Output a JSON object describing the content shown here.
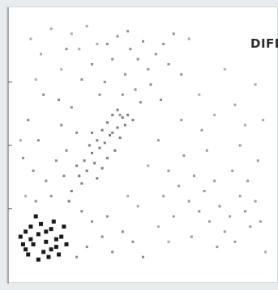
{
  "chart_data": {
    "type": "scatter",
    "title": "DIFF",
    "xlabel": "",
    "ylabel": "",
    "xlim": [
      0,
      100
    ],
    "ylim": [
      0,
      100
    ],
    "grid": false,
    "series": [
      {
        "values": [
          {
            "x": 2,
            "y": 14
          },
          {
            "x": 4,
            "y": 9
          },
          {
            "x": 6,
            "y": 18
          },
          {
            "x": 7,
            "y": 11
          },
          {
            "x": 9,
            "y": 15
          },
          {
            "x": 11,
            "y": 8
          },
          {
            "x": 12,
            "y": 12
          },
          {
            "x": 14,
            "y": 17
          },
          {
            "x": 16,
            "y": 10
          },
          {
            "x": 18,
            "y": 14
          },
          {
            "x": 10,
            "y": 19
          },
          {
            "x": 13,
            "y": 6
          },
          {
            "x": 15,
            "y": 20
          },
          {
            "x": 8,
            "y": 22
          },
          {
            "x": 17,
            "y": 7
          },
          {
            "x": 3,
            "y": 11
          },
          {
            "x": 5,
            "y": 7
          },
          {
            "x": 19,
            "y": 18
          },
          {
            "x": 12,
            "y": 16
          },
          {
            "x": 6,
            "y": 13
          },
          {
            "x": 20,
            "y": 11
          },
          {
            "x": 14,
            "y": 9
          },
          {
            "x": 9,
            "y": 5
          },
          {
            "x": 4,
            "y": 16
          },
          {
            "x": 16,
            "y": 13
          }
        ]
      },
      {
        "values": [
          {
            "x": 22,
            "y": 32
          },
          {
            "x": 25,
            "y": 38
          },
          {
            "x": 27,
            "y": 44
          },
          {
            "x": 30,
            "y": 47
          },
          {
            "x": 32,
            "y": 52
          },
          {
            "x": 34,
            "y": 56
          },
          {
            "x": 36,
            "y": 59
          },
          {
            "x": 38,
            "y": 62
          },
          {
            "x": 40,
            "y": 57
          },
          {
            "x": 42,
            "y": 61
          },
          {
            "x": 28,
            "y": 40
          },
          {
            "x": 31,
            "y": 43
          },
          {
            "x": 33,
            "y": 49
          },
          {
            "x": 35,
            "y": 51
          },
          {
            "x": 37,
            "y": 54
          },
          {
            "x": 39,
            "y": 48
          },
          {
            "x": 41,
            "y": 53
          },
          {
            "x": 43,
            "y": 58
          },
          {
            "x": 26,
            "y": 35
          },
          {
            "x": 29,
            "y": 50
          },
          {
            "x": 24,
            "y": 42
          },
          {
            "x": 36,
            "y": 45
          },
          {
            "x": 44,
            "y": 62
          },
          {
            "x": 32,
            "y": 37
          },
          {
            "x": 38,
            "y": 55
          },
          {
            "x": 30,
            "y": 55
          },
          {
            "x": 34,
            "y": 41
          },
          {
            "x": 40,
            "y": 64
          },
          {
            "x": 21,
            "y": 28
          },
          {
            "x": 46,
            "y": 60
          }
        ]
      },
      {
        "values": [
          {
            "x": 40,
            "y": 93
          },
          {
            "x": 45,
            "y": 88
          },
          {
            "x": 48,
            "y": 84
          },
          {
            "x": 52,
            "y": 80
          },
          {
            "x": 43,
            "y": 78
          },
          {
            "x": 50,
            "y": 91
          },
          {
            "x": 38,
            "y": 84
          },
          {
            "x": 55,
            "y": 86
          },
          {
            "x": 47,
            "y": 72
          },
          {
            "x": 42,
            "y": 70
          },
          {
            "x": 35,
            "y": 75
          },
          {
            "x": 53,
            "y": 74
          },
          {
            "x": 58,
            "y": 90
          },
          {
            "x": 44,
            "y": 95
          },
          {
            "x": 36,
            "y": 90
          },
          {
            "x": 60,
            "y": 82
          },
          {
            "x": 49,
            "y": 67
          },
          {
            "x": 30,
            "y": 82
          },
          {
            "x": 33,
            "y": 70
          },
          {
            "x": 57,
            "y": 68
          },
          {
            "x": 20,
            "y": 88
          },
          {
            "x": 26,
            "y": 76
          },
          {
            "x": 62,
            "y": 94
          },
          {
            "x": 65,
            "y": 78
          },
          {
            "x": 41,
            "y": 62
          }
        ]
      },
      {
        "values": [
          {
            "x": 12,
            "y": 36
          },
          {
            "x": 16,
            "y": 44
          },
          {
            "x": 9,
            "y": 52
          },
          {
            "x": 18,
            "y": 58
          },
          {
            "x": 22,
            "y": 65
          },
          {
            "x": 7,
            "y": 40
          },
          {
            "x": 14,
            "y": 30
          },
          {
            "x": 20,
            "y": 48
          },
          {
            "x": 5,
            "y": 60
          },
          {
            "x": 11,
            "y": 70
          },
          {
            "x": 24,
            "y": 55
          },
          {
            "x": 8,
            "y": 28
          },
          {
            "x": 17,
            "y": 68
          },
          {
            "x": 3,
            "y": 45
          },
          {
            "x": 19,
            "y": 38
          },
          {
            "x": 26,
            "y": 24
          },
          {
            "x": 30,
            "y": 20
          },
          {
            "x": 34,
            "y": 14
          },
          {
            "x": 28,
            "y": 10
          },
          {
            "x": 38,
            "y": 8
          },
          {
            "x": 42,
            "y": 16
          },
          {
            "x": 46,
            "y": 12
          },
          {
            "x": 36,
            "y": 22
          },
          {
            "x": 50,
            "y": 6
          },
          {
            "x": 24,
            "y": 6
          }
        ]
      },
      {
        "values": [
          {
            "x": 60,
            "y": 40
          },
          {
            "x": 64,
            "y": 34
          },
          {
            "x": 68,
            "y": 28
          },
          {
            "x": 72,
            "y": 24
          },
          {
            "x": 76,
            "y": 20
          },
          {
            "x": 80,
            "y": 26
          },
          {
            "x": 84,
            "y": 22
          },
          {
            "x": 88,
            "y": 30
          },
          {
            "x": 92,
            "y": 18
          },
          {
            "x": 66,
            "y": 46
          },
          {
            "x": 70,
            "y": 38
          },
          {
            "x": 74,
            "y": 32
          },
          {
            "x": 78,
            "y": 36
          },
          {
            "x": 82,
            "y": 16
          },
          {
            "x": 86,
            "y": 12
          },
          {
            "x": 90,
            "y": 24
          },
          {
            "x": 94,
            "y": 28
          },
          {
            "x": 62,
            "y": 22
          },
          {
            "x": 58,
            "y": 30
          },
          {
            "x": 96,
            "y": 20
          },
          {
            "x": 75,
            "y": 48
          },
          {
            "x": 85,
            "y": 40
          },
          {
            "x": 91,
            "y": 36
          },
          {
            "x": 69,
            "y": 14
          },
          {
            "x": 79,
            "y": 10
          },
          {
            "x": 56,
            "y": 52
          },
          {
            "x": 73,
            "y": 56
          },
          {
            "x": 88,
            "y": 50
          },
          {
            "x": 95,
            "y": 44
          },
          {
            "x": 65,
            "y": 60
          }
        ]
      },
      {
        "values": [
          {
            "x": 6,
            "y": 92
          },
          {
            "x": 10,
            "y": 86
          },
          {
            "x": 14,
            "y": 96
          },
          {
            "x": 22,
            "y": 94
          },
          {
            "x": 28,
            "y": 97
          },
          {
            "x": 32,
            "y": 90
          },
          {
            "x": 18,
            "y": 80
          },
          {
            "x": 25,
            "y": 88
          },
          {
            "x": 68,
            "y": 92
          },
          {
            "x": 72,
            "y": 70
          },
          {
            "x": 78,
            "y": 62
          },
          {
            "x": 82,
            "y": 80
          },
          {
            "x": 86,
            "y": 66
          },
          {
            "x": 90,
            "y": 58
          },
          {
            "x": 94,
            "y": 74
          },
          {
            "x": 8,
            "y": 76
          },
          {
            "x": 4,
            "y": 30
          },
          {
            "x": 2,
            "y": 52
          },
          {
            "x": 52,
            "y": 42
          },
          {
            "x": 56,
            "y": 18
          },
          {
            "x": 48,
            "y": 26
          },
          {
            "x": 44,
            "y": 30
          },
          {
            "x": 60,
            "y": 12
          },
          {
            "x": 98,
            "y": 8
          },
          {
            "x": 97,
            "y": 60
          }
        ]
      }
    ]
  },
  "colors": {
    "series": [
      "#1a1a1a",
      "#7a7a7a",
      "#8f8f8f",
      "#8a8a8a",
      "#9a9a9a",
      "#aaaaaa"
    ],
    "background": "#e9ecef",
    "plot_background": "#ffffff",
    "axis": "#555555"
  }
}
